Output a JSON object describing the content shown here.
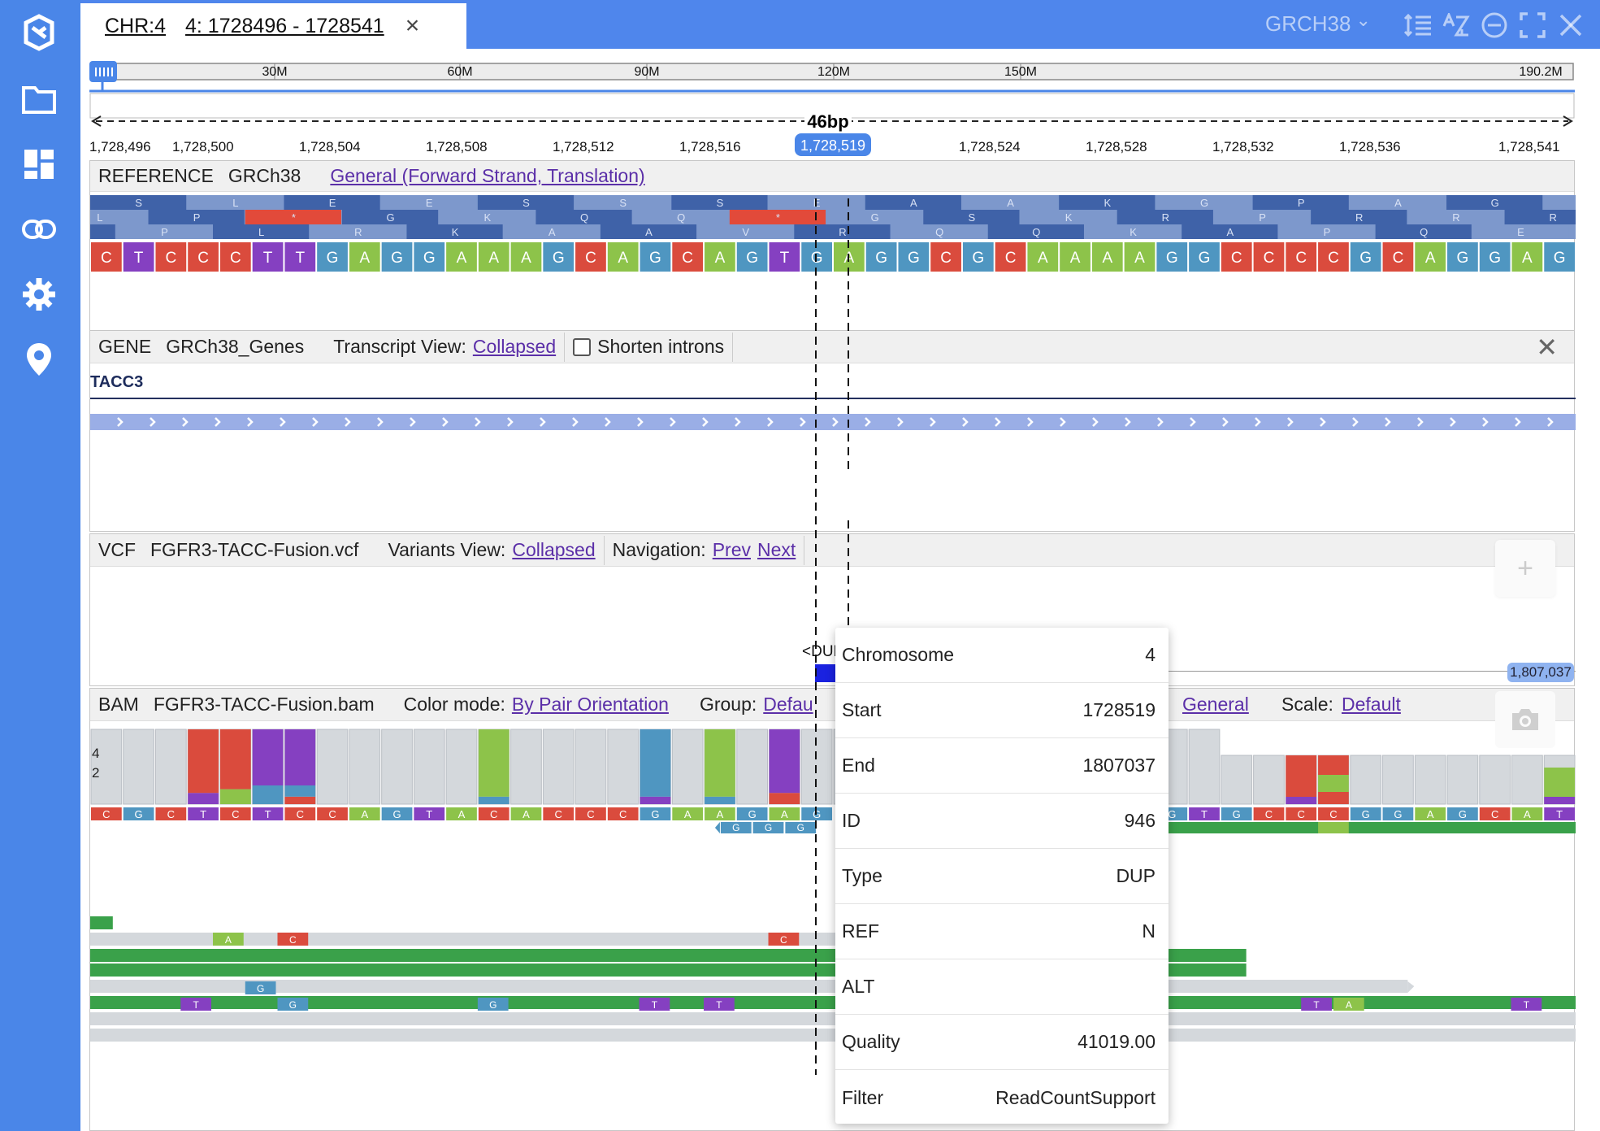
{
  "header": {
    "chr_label": "CHR:4",
    "locus_label": "4: 1728496 - 1728541",
    "close_glyph": "×",
    "genome": "GRCH38",
    "genome_chevron": "⌄"
  },
  "sidebar": {
    "items": [
      {
        "name": "logo-icon"
      },
      {
        "name": "folder-icon"
      },
      {
        "name": "dashboard-icon"
      },
      {
        "name": "link-icon"
      },
      {
        "name": "gear-icon"
      },
      {
        "name": "location-pin-icon"
      }
    ]
  },
  "ideogram": {
    "ticks": [
      "30M",
      "60M",
      "90M",
      "120M",
      "150M",
      "190.2M"
    ],
    "ruler_label": "46bp",
    "positions": [
      "1,728,496",
      "1,728,500",
      "1,728,504",
      "1,728,508",
      "1,728,512",
      "1,728,516",
      "1,728,524",
      "1,728,528",
      "1,728,532",
      "1,728,536",
      "1,728,541"
    ],
    "cursor_position": "1,728,519"
  },
  "reference": {
    "label": "REFERENCE",
    "genome": "GRCh38",
    "link": "General (Forward Strand, Translation)",
    "frame1": [
      "S",
      "L",
      "E",
      "E",
      "S",
      "S",
      "S",
      "E",
      "A",
      "A",
      "K",
      "G",
      "P",
      "A",
      "G"
    ],
    "frame2": [
      "L",
      "P",
      "*",
      "G",
      "K",
      "Q",
      "Q",
      "*",
      "G",
      "S",
      "K",
      "R",
      "P",
      "R",
      "R",
      "R"
    ],
    "frame3": [
      "P",
      "P",
      "L",
      "R",
      "K",
      "A",
      "A",
      "V",
      "R",
      "Q",
      "Q",
      "K",
      "A",
      "P",
      "Q",
      "E"
    ],
    "sequence": "CTCCCTTGAGGAAAGCAGCAGTGAGGCGCAAAAGGCCCCGCAGGAG",
    "colors": {
      "A": "#8DC34A",
      "C": "#DA4B3D",
      "G": "#4F96C1",
      "T": "#8540C1"
    }
  },
  "gene": {
    "label": "GENE",
    "name": "GRCh38_Genes",
    "view_label": "Transcript View:",
    "view_value": "Collapsed",
    "shorten_label": "Shorten introns",
    "gene_name": "TACC3",
    "close_glyph": "✕"
  },
  "vcf": {
    "label": "VCF",
    "name": "FGFR3-TACC-Fusion.vcf",
    "view_label": "Variants View:",
    "view_value": "Collapsed",
    "nav_label": "Navigation:",
    "prev": "Prev",
    "next": "Next",
    "variant_label": "<DUP>",
    "end_badge": "1,807,037",
    "close_glyph": "✕"
  },
  "bam": {
    "label": "BAM",
    "name": "FGFR3-TACC-Fusion.bam",
    "color_mode_label": "Color mode:",
    "color_mode_value": "By Pair Orientation",
    "group_label": "Group:",
    "group_value": "Defau",
    "general": "General",
    "scale_label": "Scale:",
    "scale_value": "Default",
    "coverage_ticks": [
      "4",
      "2"
    ],
    "close_glyph": "✕"
  },
  "popup": {
    "rows": [
      {
        "key": "Chromosome",
        "value": "4"
      },
      {
        "key": "Start",
        "value": "1728519"
      },
      {
        "key": "End",
        "value": "1807037"
      },
      {
        "key": "ID",
        "value": "946"
      },
      {
        "key": "Type",
        "value": "DUP"
      },
      {
        "key": "REF",
        "value": "N"
      },
      {
        "key": "ALT",
        "value": ""
      },
      {
        "key": "Quality",
        "value": "41019.00"
      },
      {
        "key": "Filter",
        "value": "ReadCountSupport"
      }
    ]
  },
  "controls": {
    "zoom_in": "+"
  }
}
